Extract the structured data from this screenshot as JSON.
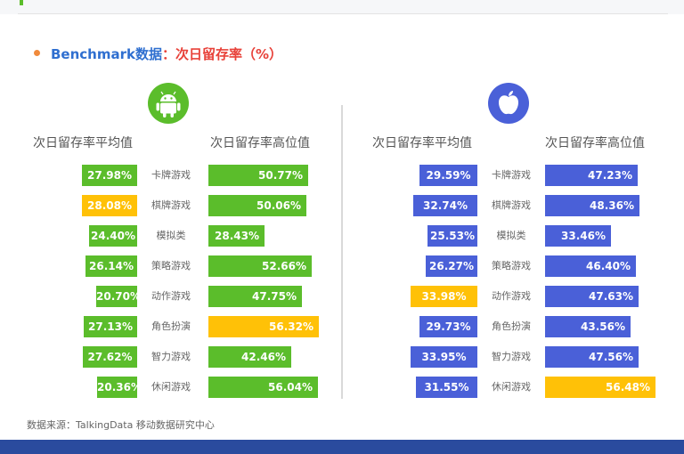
{
  "title": {
    "prefix": "Benchmark数据",
    "main": "：次日留存率（%）"
  },
  "source": "数据来源：TalkingData 移动数据研究中心",
  "colors": {
    "android": "#5bbd2b",
    "ios": "#4a60d8",
    "highlight": "#ffc107",
    "title_blue": "#2f6fd0",
    "title_red": "#e8423a"
  },
  "chart_data": [
    {
      "type": "bar",
      "platform": "Android",
      "icon": "android-icon",
      "categories": [
        "卡牌游戏",
        "棋牌游戏",
        "模拟类",
        "策略游戏",
        "动作游戏",
        "角色扮演",
        "智力游戏",
        "休闲游戏"
      ],
      "series": [
        {
          "name": "次日留存率平均值",
          "values": [
            27.98,
            28.08,
            24.4,
            26.14,
            20.7,
            27.13,
            27.62,
            20.36
          ],
          "labels": [
            "27.98%",
            "28.08%",
            "24.40%",
            "26.14%",
            "20.70%",
            "27.13%",
            "27.62%",
            "20.36%"
          ],
          "highlight_index": 1
        },
        {
          "name": "次日留存率高位值",
          "values": [
            50.77,
            50.06,
            28.43,
            52.66,
            47.75,
            56.32,
            42.46,
            56.04
          ],
          "labels": [
            "50.77%",
            "50.06%",
            "28.43%",
            "52.66%",
            "47.75%",
            "56.32%",
            "42.46%",
            "56.04%"
          ],
          "highlight_index": 5
        }
      ]
    },
    {
      "type": "bar",
      "platform": "iOS",
      "icon": "apple-icon",
      "categories": [
        "卡牌游戏",
        "棋牌游戏",
        "模拟类",
        "策略游戏",
        "动作游戏",
        "角色扮演",
        "智力游戏",
        "休闲游戏"
      ],
      "series": [
        {
          "name": "次日留存率平均值",
          "values": [
            29.59,
            32.74,
            25.53,
            26.27,
            33.98,
            29.73,
            33.95,
            31.55
          ],
          "labels": [
            "29.59%",
            "32.74%",
            "25.53%",
            "26.27%",
            "33.98%",
            "29.73%",
            "33.95%",
            "31.55%"
          ],
          "highlight_index": 4
        },
        {
          "name": "次日留存率高位值",
          "values": [
            47.23,
            48.36,
            33.46,
            46.4,
            47.63,
            43.56,
            47.56,
            56.48
          ],
          "labels": [
            "47.23%",
            "48.36%",
            "33.46%",
            "46.40%",
            "47.63%",
            "43.56%",
            "47.56%",
            "56.48%"
          ],
          "highlight_index": 7
        }
      ]
    }
  ]
}
